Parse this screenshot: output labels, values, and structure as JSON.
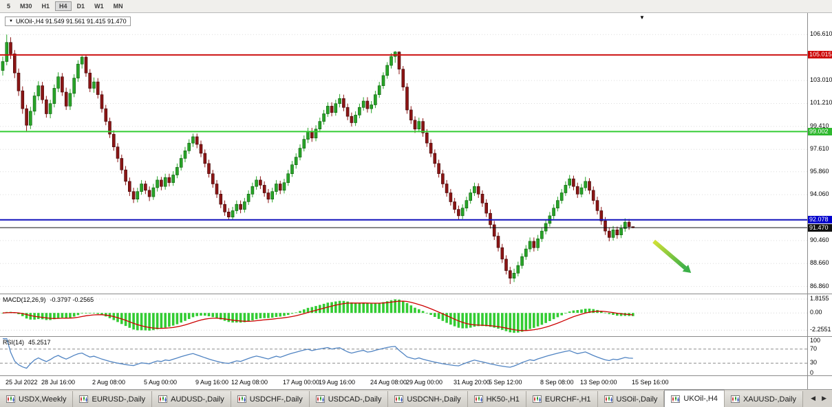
{
  "header": {
    "collapse_icon": "▼",
    "title": "UKOil-,H4 91.549 91.561 91.415 91.470"
  },
  "toolbar": {
    "timeframe_buttons": [
      "5",
      "M30",
      "H1",
      "H4",
      "D1",
      "W1",
      "MN"
    ],
    "active_timeframe": "H4"
  },
  "chart_data": {
    "type": "candlestick",
    "symbol": "UKOil-",
    "timeframe": "H4",
    "ohlc_display": {
      "open": "91.549",
      "high": "91.561",
      "low": "91.415",
      "close": "91.470"
    },
    "ylim": [
      86.3,
      108.3
    ],
    "y_ticks": [
      "106.610",
      "103.010",
      "101.210",
      "99.410",
      "97.610",
      "95.860",
      "94.060",
      "90.460",
      "88.660",
      "86.860"
    ],
    "x_ticks": [
      {
        "label": "25 Jul 2022",
        "i": 1
      },
      {
        "label": "28 Jul 16:00",
        "i": 10
      },
      {
        "label": "2 Aug 08:00",
        "i": 23
      },
      {
        "label": "5 Aug 00:00",
        "i": 36
      },
      {
        "label": "9 Aug 16:00",
        "i": 49
      },
      {
        "label": "12 Aug 08:00",
        "i": 58
      },
      {
        "label": "17 Aug 00:00",
        "i": 71
      },
      {
        "label": "19 Aug 16:00",
        "i": 80
      },
      {
        "label": "24 Aug 08:00",
        "i": 93
      },
      {
        "label": "29 Aug 00:00",
        "i": 102
      },
      {
        "label": "31 Aug 20:00",
        "i": 114
      },
      {
        "label": "5 Sep 12:00",
        "i": 123
      },
      {
        "label": "8 Sep 08:00",
        "i": 136
      },
      {
        "label": "13 Sep 00:00",
        "i": 146
      },
      {
        "label": "15 Sep 16:00",
        "i": 159
      }
    ],
    "colors": {
      "up": "#28a428",
      "up_border": "#0a5a0a",
      "down": "#8b1515",
      "down_border": "#3c0808",
      "grid": "#dcdcdc"
    },
    "hlines": [
      {
        "price": 105.015,
        "color": "#cc1111",
        "width": 2,
        "label": "105.015",
        "badge_bg": "#cc0000"
      },
      {
        "price": 99.002,
        "color": "#33cc33",
        "width": 2,
        "label": "99.002",
        "badge_bg": "#2eb82e"
      },
      {
        "price": 92.078,
        "color": "#1111bb",
        "width": 2,
        "label": "92.078",
        "badge_bg": "#0000cc"
      },
      {
        "price": 91.47,
        "color": "#111111",
        "width": 1,
        "label": "91.470",
        "badge_bg": "#111111"
      }
    ],
    "arrow": {
      "x_frac_start": 0.81,
      "price_start": 90.4,
      "x_frac_end": 0.849,
      "price_end": 88.3,
      "color_start": "#d3e135",
      "color_end": "#3cb048"
    },
    "shift_marker": "▼",
    "candles": [
      [
        103.8,
        104.9,
        103.4,
        104.5
      ],
      [
        104.5,
        106.61,
        104.2,
        106.0
      ],
      [
        106.0,
        106.4,
        104.7,
        105.1
      ],
      [
        105.1,
        105.4,
        103.2,
        103.6
      ],
      [
        103.6,
        103.95,
        101.8,
        102.2
      ],
      [
        102.2,
        102.55,
        100.4,
        100.8
      ],
      [
        100.8,
        101.1,
        99.0,
        99.5
      ],
      [
        99.5,
        100.95,
        99.2,
        100.6
      ],
      [
        100.6,
        102.1,
        100.3,
        101.8
      ],
      [
        101.8,
        102.95,
        101.45,
        102.6
      ],
      [
        102.6,
        102.9,
        101.2,
        101.5
      ],
      [
        101.5,
        101.8,
        100.1,
        100.4
      ],
      [
        100.4,
        101.5,
        100.05,
        101.2
      ],
      [
        101.2,
        102.7,
        100.9,
        102.4
      ],
      [
        102.4,
        103.65,
        102.1,
        103.3
      ],
      [
        103.3,
        103.6,
        101.8,
        102.1
      ],
      [
        102.1,
        102.45,
        100.7,
        101.0
      ],
      [
        101.0,
        102.35,
        100.7,
        102.0
      ],
      [
        102.0,
        103.5,
        101.7,
        103.2
      ],
      [
        103.2,
        104.6,
        102.9,
        104.3
      ],
      [
        104.3,
        104.95,
        103.95,
        104.85
      ],
      [
        104.85,
        105.01,
        103.3,
        103.6
      ],
      [
        103.6,
        103.9,
        102.1,
        102.4
      ],
      [
        102.4,
        103.25,
        102.05,
        102.9
      ],
      [
        102.9,
        103.2,
        101.6,
        101.9
      ],
      [
        101.9,
        102.2,
        100.5,
        100.8
      ],
      [
        100.8,
        101.1,
        99.5,
        99.8
      ],
      [
        99.8,
        100.1,
        98.5,
        98.8
      ],
      [
        98.8,
        99.1,
        97.5,
        97.8
      ],
      [
        97.8,
        98.1,
        96.6,
        96.9
      ],
      [
        96.9,
        97.2,
        95.7,
        96.0
      ],
      [
        96.0,
        96.3,
        94.8,
        95.1
      ],
      [
        95.1,
        95.4,
        93.95,
        94.3
      ],
      [
        94.3,
        94.6,
        93.4,
        93.7
      ],
      [
        93.7,
        94.6,
        93.45,
        94.3
      ],
      [
        94.3,
        95.2,
        94.05,
        94.9
      ],
      [
        94.9,
        95.15,
        94.1,
        94.4
      ],
      [
        94.4,
        94.7,
        93.55,
        93.9
      ],
      [
        93.9,
        94.9,
        93.65,
        94.6
      ],
      [
        94.6,
        95.5,
        94.3,
        95.2
      ],
      [
        95.2,
        95.45,
        94.4,
        94.7
      ],
      [
        94.7,
        95.7,
        94.45,
        95.4
      ],
      [
        95.4,
        95.7,
        94.7,
        95.0
      ],
      [
        95.0,
        95.9,
        94.75,
        95.6
      ],
      [
        95.6,
        96.5,
        95.35,
        96.2
      ],
      [
        96.2,
        97.2,
        95.95,
        96.9
      ],
      [
        96.9,
        97.8,
        96.6,
        97.5
      ],
      [
        97.5,
        98.4,
        97.25,
        98.1
      ],
      [
        98.1,
        98.85,
        97.8,
        98.6
      ],
      [
        98.6,
        98.85,
        97.7,
        98.0
      ],
      [
        98.0,
        98.3,
        97.0,
        97.3
      ],
      [
        97.3,
        97.6,
        96.2,
        96.5
      ],
      [
        96.5,
        96.8,
        95.4,
        95.7
      ],
      [
        95.7,
        96.0,
        94.6,
        94.9
      ],
      [
        94.9,
        95.2,
        93.8,
        94.1
      ],
      [
        94.1,
        94.4,
        93.0,
        93.3
      ],
      [
        93.3,
        93.6,
        92.4,
        92.7
      ],
      [
        92.7,
        93.0,
        92.08,
        92.3
      ],
      [
        92.3,
        93.1,
        92.1,
        92.8
      ],
      [
        92.8,
        93.6,
        92.55,
        93.3
      ],
      [
        93.3,
        93.6,
        92.6,
        92.9
      ],
      [
        92.9,
        93.8,
        92.65,
        93.5
      ],
      [
        93.5,
        94.4,
        93.25,
        94.1
      ],
      [
        94.1,
        95.0,
        93.85,
        94.7
      ],
      [
        94.7,
        95.5,
        94.45,
        95.2
      ],
      [
        95.2,
        95.5,
        94.5,
        94.8
      ],
      [
        94.8,
        95.1,
        93.9,
        94.2
      ],
      [
        94.2,
        94.5,
        93.4,
        93.7
      ],
      [
        93.7,
        94.6,
        93.45,
        94.3
      ],
      [
        94.3,
        95.2,
        94.05,
        94.9
      ],
      [
        94.9,
        95.15,
        94.1,
        94.4
      ],
      [
        94.4,
        95.3,
        94.15,
        95.0
      ],
      [
        95.0,
        96.0,
        94.75,
        95.7
      ],
      [
        95.7,
        96.7,
        95.45,
        96.4
      ],
      [
        96.4,
        97.3,
        96.1,
        97.0
      ],
      [
        97.0,
        98.0,
        96.75,
        97.7
      ],
      [
        97.7,
        98.7,
        97.45,
        98.4
      ],
      [
        98.4,
        99.3,
        98.1,
        99.0
      ],
      [
        99.0,
        99.3,
        98.2,
        98.5
      ],
      [
        98.5,
        99.5,
        98.25,
        99.2
      ],
      [
        99.2,
        100.1,
        98.95,
        99.8
      ],
      [
        99.8,
        100.7,
        99.55,
        100.4
      ],
      [
        100.4,
        101.3,
        100.15,
        101.0
      ],
      [
        101.0,
        101.3,
        100.2,
        100.5
      ],
      [
        100.5,
        101.5,
        100.25,
        101.2
      ],
      [
        101.2,
        101.95,
        100.9,
        101.6
      ],
      [
        101.6,
        101.9,
        100.6,
        100.9
      ],
      [
        100.9,
        101.2,
        99.9,
        100.2
      ],
      [
        100.2,
        100.5,
        99.4,
        99.7
      ],
      [
        99.7,
        100.6,
        99.45,
        100.3
      ],
      [
        100.3,
        101.2,
        100.05,
        100.9
      ],
      [
        100.9,
        101.7,
        100.65,
        101.4
      ],
      [
        101.4,
        101.7,
        100.5,
        100.8
      ],
      [
        100.8,
        101.4,
        100.45,
        101.1
      ],
      [
        101.1,
        102.2,
        100.85,
        101.9
      ],
      [
        101.9,
        102.9,
        101.65,
        102.6
      ],
      [
        102.6,
        103.65,
        102.35,
        103.4
      ],
      [
        103.4,
        104.45,
        103.15,
        104.2
      ],
      [
        104.2,
        105.15,
        103.95,
        104.9
      ],
      [
        104.9,
        105.32,
        104.4,
        105.25
      ],
      [
        105.25,
        105.3,
        103.5,
        103.9
      ],
      [
        103.9,
        104.15,
        102.2,
        102.5
      ],
      [
        102.5,
        102.8,
        100.4,
        100.7
      ],
      [
        100.7,
        101.0,
        99.6,
        99.9
      ],
      [
        99.9,
        100.2,
        98.9,
        99.2
      ],
      [
        99.2,
        100.1,
        98.95,
        99.8
      ],
      [
        99.8,
        100.05,
        98.6,
        98.9
      ],
      [
        98.9,
        99.2,
        97.8,
        98.1
      ],
      [
        98.1,
        98.4,
        97.0,
        97.3
      ],
      [
        97.3,
        97.6,
        96.2,
        96.5
      ],
      [
        96.5,
        96.8,
        95.4,
        95.7
      ],
      [
        95.7,
        96.0,
        94.6,
        94.9
      ],
      [
        94.9,
        95.2,
        93.9,
        94.2
      ],
      [
        94.2,
        94.5,
        93.2,
        93.5
      ],
      [
        93.5,
        93.8,
        92.6,
        92.9
      ],
      [
        92.9,
        93.2,
        92.1,
        92.4
      ],
      [
        92.4,
        93.3,
        92.15,
        93.0
      ],
      [
        93.0,
        93.9,
        92.75,
        93.6
      ],
      [
        93.6,
        94.5,
        93.35,
        94.2
      ],
      [
        94.2,
        95.0,
        93.95,
        94.7
      ],
      [
        94.7,
        94.95,
        93.8,
        94.1
      ],
      [
        94.1,
        94.4,
        93.1,
        93.4
      ],
      [
        93.4,
        93.7,
        92.3,
        92.6
      ],
      [
        92.6,
        92.9,
        91.4,
        91.7
      ],
      [
        91.7,
        92.0,
        90.5,
        90.8
      ],
      [
        90.8,
        91.1,
        89.6,
        89.9
      ],
      [
        89.9,
        90.2,
        88.7,
        89.0
      ],
      [
        89.0,
        89.3,
        87.8,
        88.1
      ],
      [
        88.1,
        88.4,
        87.05,
        87.5
      ],
      [
        87.5,
        88.25,
        87.2,
        87.9
      ],
      [
        87.9,
        88.8,
        87.65,
        88.5
      ],
      [
        88.5,
        89.45,
        88.25,
        89.2
      ],
      [
        89.2,
        90.1,
        88.95,
        89.8
      ],
      [
        89.8,
        90.7,
        89.55,
        90.4
      ],
      [
        90.4,
        90.7,
        89.6,
        89.9
      ],
      [
        89.9,
        90.9,
        89.65,
        90.6
      ],
      [
        90.6,
        91.5,
        90.35,
        91.2
      ],
      [
        91.2,
        92.1,
        90.95,
        91.8
      ],
      [
        91.8,
        92.7,
        91.55,
        92.4
      ],
      [
        92.4,
        93.3,
        92.15,
        93.0
      ],
      [
        93.0,
        93.9,
        92.75,
        93.6
      ],
      [
        93.6,
        94.5,
        93.35,
        94.2
      ],
      [
        94.2,
        95.1,
        93.95,
        94.8
      ],
      [
        94.8,
        95.6,
        94.55,
        95.3
      ],
      [
        95.3,
        95.55,
        94.4,
        94.7
      ],
      [
        94.7,
        95.0,
        93.8,
        94.1
      ],
      [
        94.1,
        94.9,
        93.85,
        94.6
      ],
      [
        94.6,
        95.45,
        94.35,
        95.1
      ],
      [
        95.1,
        95.35,
        94.1,
        94.4
      ],
      [
        94.4,
        94.7,
        93.3,
        93.6
      ],
      [
        93.6,
        93.9,
        92.5,
        92.8
      ],
      [
        92.8,
        93.1,
        91.7,
        92.0
      ],
      [
        92.0,
        92.3,
        90.9,
        91.2
      ],
      [
        91.2,
        91.5,
        90.4,
        90.7
      ],
      [
        90.7,
        91.6,
        90.45,
        91.3
      ],
      [
        91.3,
        91.55,
        90.6,
        90.9
      ],
      [
        90.9,
        91.7,
        90.65,
        91.4
      ],
      [
        91.4,
        92.2,
        91.15,
        91.9
      ],
      [
        91.9,
        92.15,
        91.3,
        91.55
      ],
      [
        91.549,
        91.561,
        91.415,
        91.47
      ]
    ],
    "indicators": {
      "macd": {
        "label": "MACD(12,26,9)",
        "values_text": "-0.3797 -0.2565",
        "fast": 12,
        "slow": 26,
        "signal": 9,
        "y_ticks": [
          "1.8155",
          "0.00",
          "-2.2551"
        ],
        "ylim": [
          -3.05,
          2.45
        ],
        "hist_color": "#33cc33",
        "signal_color": "#cc0000"
      },
      "rsi": {
        "label": "RSI(14)",
        "value_text": "45.2517",
        "period": 14,
        "y_ticks": [
          "100",
          "70",
          "30",
          "0"
        ],
        "levels": [
          70,
          30
        ],
        "ylim": [
          -5,
          105
        ],
        "line_color": "#4f83c2"
      }
    }
  },
  "tabs": {
    "active_tab": "UKOil-,H4",
    "items": [
      "USDX,Weekly",
      "EURUSD-,Daily",
      "AUDUSD-,Daily",
      "USDCHF-,Daily",
      "USDCAD-,Daily",
      "USDCNH-,Daily",
      "HK50-,H1",
      "EURCHF-,H1",
      "USOil-,Daily",
      "UKOil-,H4",
      "XAUUSD-,Daily"
    ],
    "scroll_left_icon": "◀",
    "scroll_right_icon": "▶"
  }
}
